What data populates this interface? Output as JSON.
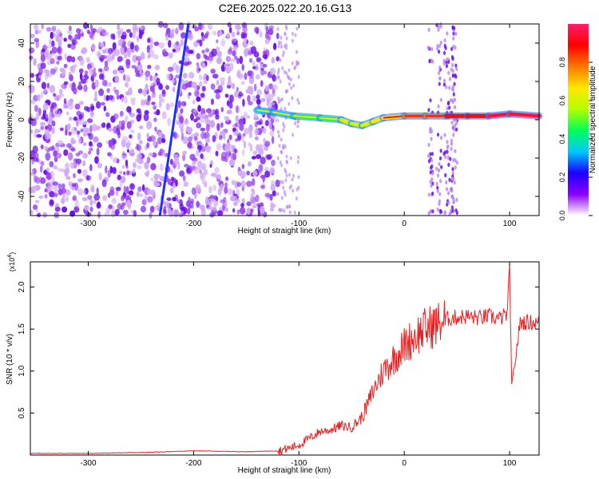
{
  "figure": {
    "title": "C2E6.2025.022.20.16.G13"
  },
  "chart_data": [
    {
      "type": "heatmap",
      "xlabel": "Height of straight line (km)",
      "ylabel": "Frequency (Hz)",
      "xlim": [
        -355,
        128
      ],
      "ylim": [
        -50,
        50
      ],
      "xticks": [
        -300,
        -200,
        -100,
        0,
        100
      ],
      "xtick_labels": [
        "-300",
        "-200",
        "-100",
        "0",
        "100"
      ],
      "yticks": [
        -40,
        -20,
        0,
        20,
        40
      ],
      "ytick_labels": [
        "-40",
        "-20",
        "0",
        "20",
        "40"
      ],
      "grid": false,
      "colorbar": {
        "label": "Normalized spectral amplitude",
        "range": [
          0,
          1
        ],
        "ticks": [
          0,
          0.2,
          0.4,
          0.6,
          0.8
        ],
        "tick_labels": [
          "0.0",
          "0.2",
          "0.4",
          "0.6",
          "0.8"
        ],
        "colormap": [
          "#ffffff",
          "#8a00ff",
          "#1d00ff",
          "#00c8ff",
          "#00ff5a",
          "#b4ff00",
          "#ffe600",
          "#ff7800",
          "#ff0000",
          "#ff1e6e"
        ]
      },
      "features": {
        "noise_region_x": [
          -355,
          -120
        ],
        "diagonal_stripe": {
          "from": [
            -232,
            -50
          ],
          "to": [
            -205,
            50
          ]
        },
        "carrier_track": [
          [
            -140,
            5
          ],
          [
            -125,
            4
          ],
          [
            -105,
            2
          ],
          [
            -80,
            1
          ],
          [
            -60,
            0
          ],
          [
            -50,
            -2
          ],
          [
            -40,
            -3
          ],
          [
            -30,
            -1
          ],
          [
            -20,
            1
          ],
          [
            0,
            2
          ],
          [
            20,
            2
          ],
          [
            40,
            2
          ],
          [
            60,
            2
          ],
          [
            80,
            2
          ],
          [
            100,
            3
          ],
          [
            128,
            2
          ]
        ],
        "vertical_bursts_x": [
          25,
          33,
          40,
          45,
          48
        ]
      }
    },
    {
      "type": "line",
      "xlabel": "Height of straight line (km)",
      "ylabel": "SNR (10 * v/v)",
      "y_multiplier": "(x10^4)",
      "xlim": [
        -355,
        128
      ],
      "ylim": [
        0,
        2.3
      ],
      "xticks": [
        -300,
        -200,
        -100,
        0,
        100
      ],
      "xtick_labels": [
        "-300",
        "-200",
        "-100",
        "0",
        "100"
      ],
      "yticks": [
        0.5,
        1.0,
        1.5,
        2.0
      ],
      "ytick_labels": [
        "0.5",
        "1.0",
        "1.5",
        "2.0"
      ],
      "grid": false,
      "series": [
        {
          "color": "#e82020",
          "x": [
            -355,
            -300,
            -250,
            -200,
            -150,
            -120,
            -110,
            -100,
            -90,
            -80,
            -70,
            -60,
            -50,
            -40,
            -30,
            -20,
            -10,
            0,
            10,
            20,
            30,
            40,
            50,
            60,
            70,
            80,
            90,
            98,
            100,
            102,
            110,
            120,
            128
          ],
          "y": [
            0.02,
            0.02,
            0.03,
            0.05,
            0.04,
            0.05,
            0.08,
            0.12,
            0.2,
            0.28,
            0.3,
            0.35,
            0.33,
            0.45,
            0.75,
            1.0,
            1.15,
            1.3,
            1.42,
            1.5,
            1.55,
            1.62,
            1.64,
            1.65,
            1.63,
            1.65,
            1.62,
            1.68,
            2.25,
            0.8,
            1.58,
            1.58,
            1.57
          ]
        }
      ]
    }
  ]
}
